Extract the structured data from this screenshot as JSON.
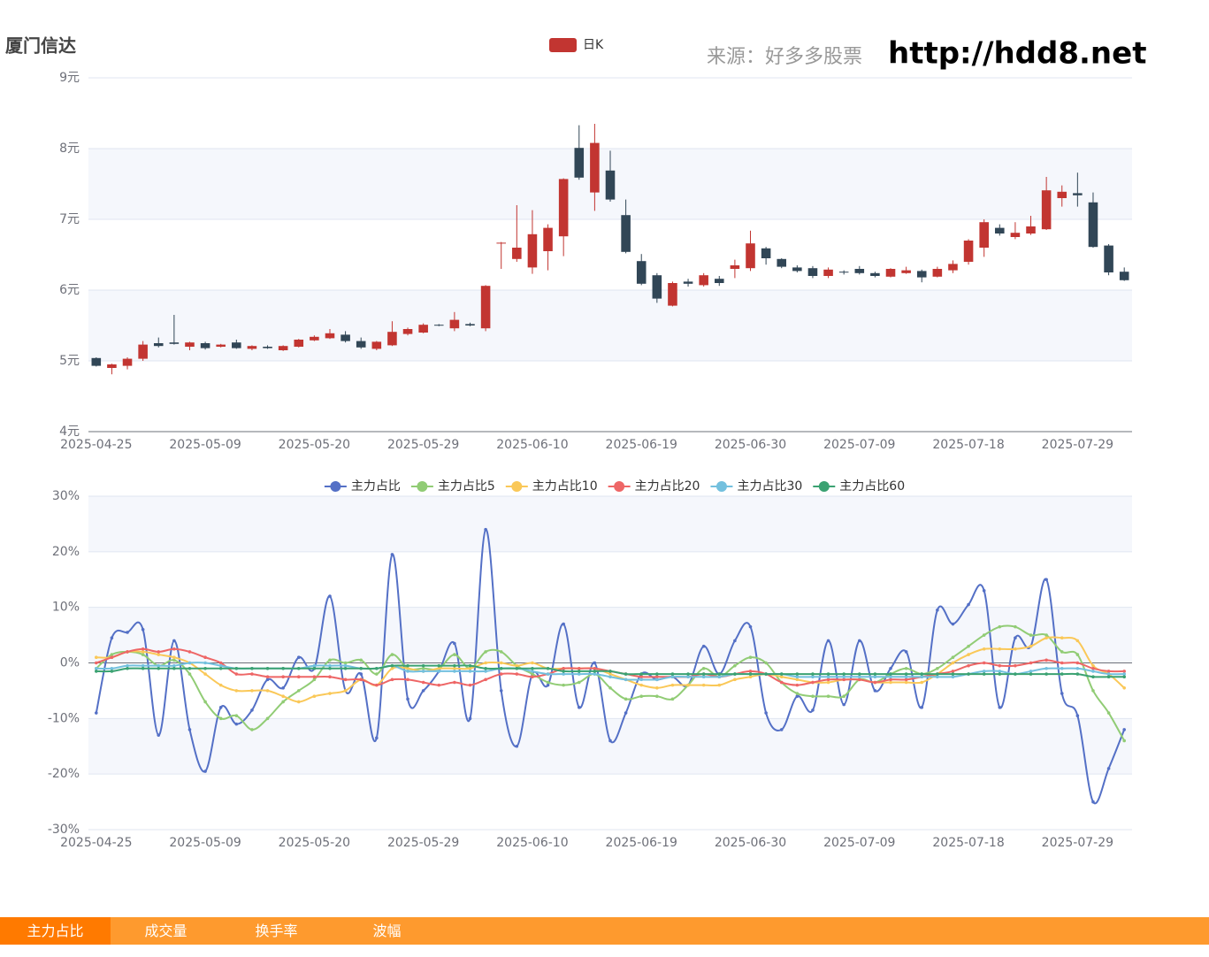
{
  "header": {
    "title": "厦门信达",
    "source": "来源：好多多股票",
    "url": "http://hdd8.net"
  },
  "tabs": [
    "主力占比",
    "成交量",
    "换手率",
    "波幅"
  ],
  "chart_data": [
    {
      "type": "candlestick",
      "legend": "日K",
      "up_color": "#c23531",
      "down_color": "#314656",
      "split_area": true,
      "grid": true,
      "categories": [
        "2025-04-25",
        null,
        null,
        null,
        null,
        null,
        null,
        "2025-05-09",
        null,
        null,
        null,
        null,
        null,
        null,
        "2025-05-20",
        null,
        null,
        null,
        null,
        null,
        null,
        "2025-05-29",
        null,
        null,
        null,
        null,
        null,
        null,
        "2025-06-10",
        null,
        null,
        null,
        null,
        null,
        null,
        "2025-06-19",
        null,
        null,
        null,
        null,
        null,
        null,
        "2025-06-30",
        null,
        null,
        null,
        null,
        null,
        null,
        "2025-07-09",
        null,
        null,
        null,
        null,
        null,
        null,
        "2025-07-18",
        null,
        null,
        null,
        null,
        null,
        null,
        "2025-07-29",
        null,
        null,
        null
      ],
      "open": [
        5.04,
        4.9,
        4.93,
        5.03,
        5.25,
        5.26,
        5.2,
        5.25,
        5.2,
        5.26,
        5.17,
        5.2,
        5.15,
        5.2,
        5.29,
        5.32,
        5.37,
        5.28,
        5.17,
        5.22,
        5.38,
        5.4,
        5.51,
        5.46,
        5.52,
        5.46,
        6.66,
        6.44,
        6.32,
        6.55,
        6.76,
        8.01,
        7.38,
        7.69,
        7.06,
        6.41,
        6.21,
        5.78,
        6.12,
        6.07,
        6.16,
        6.3,
        6.31,
        6.59,
        6.44,
        6.32,
        6.31,
        6.2,
        6.26,
        6.3,
        6.24,
        6.19,
        6.24,
        6.27,
        6.19,
        6.28,
        6.4,
        6.6,
        6.88,
        6.75,
        6.8,
        6.86,
        7.3,
        7.37,
        7.24,
        6.63,
        6.26
      ],
      "close": [
        4.93,
        4.95,
        5.03,
        5.23,
        5.21,
        5.24,
        5.26,
        5.18,
        5.23,
        5.18,
        5.21,
        5.18,
        5.21,
        5.3,
        5.34,
        5.39,
        5.28,
        5.19,
        5.27,
        5.41,
        5.45,
        5.51,
        5.5,
        5.58,
        5.5,
        6.06,
        6.67,
        6.6,
        6.79,
        6.88,
        7.57,
        7.59,
        8.08,
        7.28,
        6.54,
        6.09,
        5.88,
        6.1,
        6.09,
        6.21,
        6.1,
        6.35,
        6.66,
        6.45,
        6.33,
        6.27,
        6.2,
        6.29,
        6.25,
        6.24,
        6.2,
        6.3,
        6.28,
        6.18,
        6.3,
        6.37,
        6.7,
        6.96,
        6.8,
        6.81,
        6.9,
        7.41,
        7.39,
        7.34,
        6.61,
        6.25,
        6.14
      ],
      "high": [
        5.05,
        4.96,
        5.05,
        5.28,
        5.33,
        5.65,
        5.27,
        5.27,
        5.24,
        5.3,
        5.22,
        5.22,
        5.22,
        5.31,
        5.36,
        5.45,
        5.42,
        5.33,
        5.28,
        5.56,
        5.47,
        5.53,
        5.52,
        5.69,
        5.54,
        6.07,
        6.68,
        7.2,
        7.13,
        6.93,
        7.58,
        8.33,
        8.35,
        7.97,
        7.28,
        6.51,
        6.24,
        6.12,
        6.16,
        6.24,
        6.2,
        6.43,
        6.84,
        6.61,
        6.45,
        6.35,
        6.34,
        6.32,
        6.28,
        6.34,
        6.26,
        6.31,
        6.33,
        6.29,
        6.33,
        6.42,
        6.72,
        7.0,
        6.93,
        6.96,
        7.05,
        7.6,
        7.48,
        7.66,
        7.38,
        6.65,
        6.32
      ],
      "low": [
        4.92,
        4.81,
        4.88,
        5.0,
        5.19,
        5.23,
        5.15,
        5.16,
        5.19,
        5.17,
        5.15,
        5.17,
        5.14,
        5.19,
        5.28,
        5.31,
        5.26,
        5.17,
        5.15,
        5.21,
        5.36,
        5.39,
        5.49,
        5.42,
        5.49,
        5.42,
        6.3,
        6.4,
        6.23,
        6.28,
        6.48,
        7.56,
        7.12,
        7.25,
        6.52,
        6.07,
        5.82,
        5.77,
        6.05,
        6.05,
        6.06,
        6.17,
        6.27,
        6.36,
        6.31,
        6.25,
        6.17,
        6.17,
        6.22,
        6.22,
        6.18,
        6.18,
        6.23,
        6.11,
        6.18,
        6.24,
        6.36,
        6.47,
        6.77,
        6.72,
        6.78,
        6.85,
        7.18,
        7.18,
        6.6,
        6.21,
        6.13
      ],
      "ylim": [
        4,
        9
      ],
      "yticks": [
        {
          "value": 4,
          "label": "4元"
        },
        {
          "value": 5,
          "label": "5元"
        },
        {
          "value": 6,
          "label": "6元"
        },
        {
          "value": 7,
          "label": "7元"
        },
        {
          "value": 8,
          "label": "8元"
        },
        {
          "value": 9,
          "label": "9元"
        }
      ]
    },
    {
      "type": "line",
      "smooth": true,
      "split_area": true,
      "grid": true,
      "categories": [
        "2025-04-25",
        null,
        null,
        null,
        null,
        null,
        null,
        "2025-05-09",
        null,
        null,
        null,
        null,
        null,
        null,
        "2025-05-20",
        null,
        null,
        null,
        null,
        null,
        null,
        "2025-05-29",
        null,
        null,
        null,
        null,
        null,
        null,
        "2025-06-10",
        null,
        null,
        null,
        null,
        null,
        null,
        "2025-06-19",
        null,
        null,
        null,
        null,
        null,
        null,
        "2025-06-30",
        null,
        null,
        null,
        null,
        null,
        null,
        "2025-07-09",
        null,
        null,
        null,
        null,
        null,
        null,
        "2025-07-18",
        null,
        null,
        null,
        null,
        null,
        null,
        "2025-07-29",
        null,
        null,
        null
      ],
      "series": [
        {
          "name": "主力占比",
          "color": "#5470c6",
          "values": [
            -9,
            4.5,
            5.5,
            6,
            -13,
            4,
            -12,
            -19.5,
            -8,
            -11,
            -8.5,
            -3,
            -4.5,
            1,
            -1,
            12,
            -5,
            -2,
            -13.5,
            19.5,
            -6.5,
            -5,
            -1.5,
            3.5,
            -10,
            24,
            -5,
            -15,
            -2,
            -4,
            7,
            -8,
            0,
            -14,
            -9,
            -2,
            -3,
            -2.5,
            -4,
            3,
            -2,
            4,
            6.5,
            -9,
            -12,
            -6,
            -8.5,
            4,
            -7.5,
            4,
            -5,
            -1,
            2,
            -8,
            9.5,
            7,
            10.5,
            13,
            -8,
            4.5,
            3,
            15,
            -5.5,
            -9.5,
            -25,
            -19,
            -12
          ]
        },
        {
          "name": "主力占比5",
          "color": "#91cc75",
          "values": [
            -1,
            1.5,
            2,
            1.5,
            -0.5,
            0.5,
            -2,
            -7,
            -10,
            -9.5,
            -12,
            -10,
            -7,
            -5,
            -3,
            0.5,
            0,
            0.5,
            -2,
            1.5,
            -1,
            -1,
            -1,
            1.5,
            -1,
            2,
            2,
            -0.5,
            -2,
            -3.5,
            -4,
            -3.5,
            -2,
            -4.5,
            -6.5,
            -6,
            -6,
            -6.5,
            -4,
            -1,
            -2.5,
            -0.5,
            1,
            0,
            -3.5,
            -5.5,
            -6,
            -6,
            -6,
            -3,
            -3.5,
            -2,
            -1,
            -2,
            -1,
            1,
            3,
            5,
            6.5,
            6.5,
            5,
            5,
            2,
            1.5,
            -5,
            -9,
            -14
          ]
        },
        {
          "name": "主力占比10",
          "color": "#fac858",
          "values": [
            1,
            1,
            2,
            2,
            1.5,
            1,
            0,
            -2,
            -4,
            -5,
            -5,
            -5,
            -6,
            -7,
            -6,
            -5.5,
            -5,
            -3,
            -4,
            -1,
            -1,
            -1.5,
            -1,
            -1,
            -1,
            0,
            0,
            -0.5,
            0,
            -1,
            -1,
            -1,
            -1,
            -2,
            -3,
            -4,
            -4.5,
            -4,
            -4,
            -4,
            -4,
            -3,
            -2.5,
            -2,
            -2.5,
            -3,
            -3.5,
            -3.5,
            -3,
            -3,
            -3.5,
            -3.5,
            -3.5,
            -3.5,
            -2,
            0,
            1.5,
            2.5,
            2.5,
            2.5,
            3,
            4.5,
            4.5,
            4,
            -0.5,
            -2,
            -4.5
          ]
        },
        {
          "name": "主力占比20",
          "color": "#ee6666",
          "values": [
            0,
            1,
            2,
            2.5,
            2,
            2.5,
            2,
            1,
            0,
            -2,
            -2,
            -2.5,
            -2.5,
            -2.5,
            -2.5,
            -2.5,
            -3,
            -3,
            -4,
            -3,
            -3,
            -3.5,
            -4,
            -3.5,
            -4,
            -3,
            -2,
            -2,
            -2.5,
            -2,
            -1,
            -1,
            -1,
            -1.5,
            -2,
            -2.5,
            -2.5,
            -2.5,
            -2.5,
            -2,
            -2.5,
            -2,
            -1.5,
            -2,
            -3.5,
            -4,
            -3.5,
            -3,
            -3,
            -3,
            -3.5,
            -3,
            -3,
            -2.5,
            -2,
            -1.5,
            -0.5,
            0,
            -0.5,
            -0.5,
            0,
            0.5,
            0,
            0,
            -1,
            -1.5,
            -1.5
          ]
        },
        {
          "name": "主力占比30",
          "color": "#73c0de",
          "values": [
            -1,
            -1,
            -0.5,
            -0.5,
            -0.5,
            -0.5,
            0,
            0,
            -0.5,
            -1,
            -1,
            -1,
            -1,
            -1,
            -0.5,
            -0.5,
            -0.5,
            -1,
            -1,
            -0.5,
            -1.5,
            -1.5,
            -1.5,
            -1.5,
            -1.5,
            -1.5,
            -1,
            -1,
            -1.5,
            -2,
            -2,
            -2,
            -2,
            -2.5,
            -3,
            -3,
            -3,
            -2.5,
            -2.5,
            -2.5,
            -2.5,
            -2,
            -2,
            -2,
            -2,
            -2.5,
            -2.5,
            -2.5,
            -2.5,
            -2.5,
            -2.5,
            -2.5,
            -2.5,
            -2.5,
            -2.5,
            -2.5,
            -2,
            -1.5,
            -1.5,
            -2,
            -1.5,
            -1,
            -1,
            -1,
            -1.5,
            -2,
            -2
          ]
        },
        {
          "name": "主力占比60",
          "color": "#3ba272",
          "values": [
            -1.5,
            -1.5,
            -1,
            -1,
            -1,
            -1,
            -1,
            -1,
            -1,
            -1,
            -1,
            -1,
            -1,
            -1,
            -1,
            -1,
            -1,
            -1,
            -1,
            -0.5,
            -0.5,
            -0.5,
            -0.5,
            -0.5,
            -0.5,
            -1,
            -1,
            -1,
            -1,
            -1,
            -1.5,
            -1.5,
            -1.5,
            -1.5,
            -2,
            -2,
            -2,
            -2,
            -2,
            -2,
            -2,
            -2,
            -2,
            -2,
            -2,
            -2,
            -2,
            -2,
            -2,
            -2,
            -2,
            -2,
            -2,
            -2,
            -2,
            -2,
            -2,
            -2,
            -2,
            -2,
            -2,
            -2,
            -2,
            -2,
            -2.5,
            -2.5,
            -2.5
          ]
        }
      ],
      "ylim": [
        -30,
        30
      ],
      "yticks": [
        {
          "value": -30,
          "label": "-30%"
        },
        {
          "value": -20,
          "label": "-20%"
        },
        {
          "value": -10,
          "label": "-10%"
        },
        {
          "value": 0,
          "label": "0%"
        },
        {
          "value": 10,
          "label": "10%"
        },
        {
          "value": 20,
          "label": "20%"
        },
        {
          "value": 30,
          "label": "30%"
        }
      ]
    }
  ]
}
